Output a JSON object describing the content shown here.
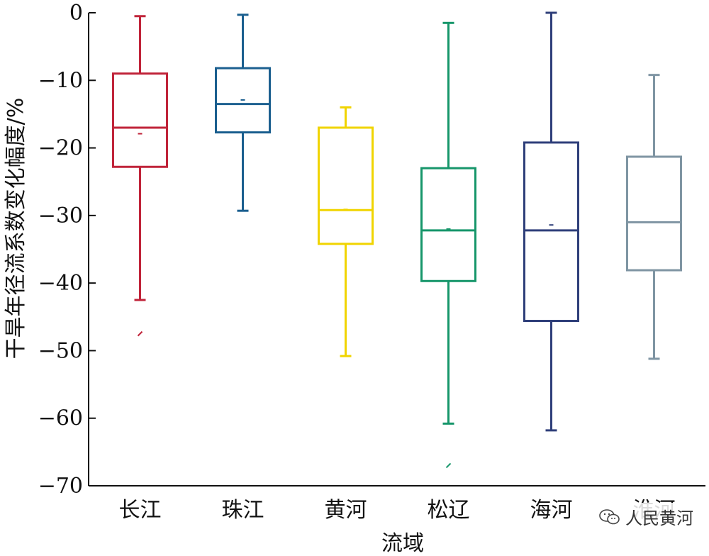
{
  "chart_data": {
    "type": "box",
    "title": "",
    "xlabel": "流域",
    "ylabel": "干旱年径流系数变化幅度/%",
    "ylim": [
      -70,
      0
    ],
    "yticks": [
      0,
      -10,
      -20,
      -30,
      -40,
      -50,
      -60,
      -70
    ],
    "grid": false,
    "categories": [
      "长江",
      "珠江",
      "黄河",
      "松辽",
      "海河",
      "淮河"
    ],
    "series": [
      {
        "name": "长江",
        "color": "#c0243a",
        "min": -42.5,
        "q1": -22.8,
        "median": -17.0,
        "q3": -9.0,
        "max": -0.5,
        "mean": -17.9,
        "outliers": [
          -47.5
        ]
      },
      {
        "name": "珠江",
        "color": "#1b5f8f",
        "min": -29.3,
        "q1": -17.7,
        "median": -13.5,
        "q3": -8.2,
        "max": -0.3,
        "mean": -12.9,
        "outliers": []
      },
      {
        "name": "黄河",
        "color": "#f0d400",
        "min": -50.8,
        "q1": -34.2,
        "median": -29.2,
        "q3": -17.0,
        "max": -14.0,
        "mean": -29.1,
        "outliers": []
      },
      {
        "name": "松辽",
        "color": "#16966a",
        "min": -60.8,
        "q1": -39.7,
        "median": -32.2,
        "q3": -23.0,
        "max": -1.5,
        "mean": -32.0,
        "outliers": [
          -67.0
        ]
      },
      {
        "name": "海河",
        "color": "#2f3f7a",
        "min": -61.8,
        "q1": -45.6,
        "median": -32.2,
        "q3": -19.2,
        "max": 0.0,
        "mean": -31.4,
        "outliers": []
      },
      {
        "name": "淮河",
        "color": "#7f95a3",
        "min": -51.2,
        "q1": -38.1,
        "median": -31.0,
        "q3": -21.3,
        "max": -9.2,
        "mean": -31.0,
        "outliers": []
      }
    ]
  },
  "watermark": {
    "text": "人民黄河"
  }
}
